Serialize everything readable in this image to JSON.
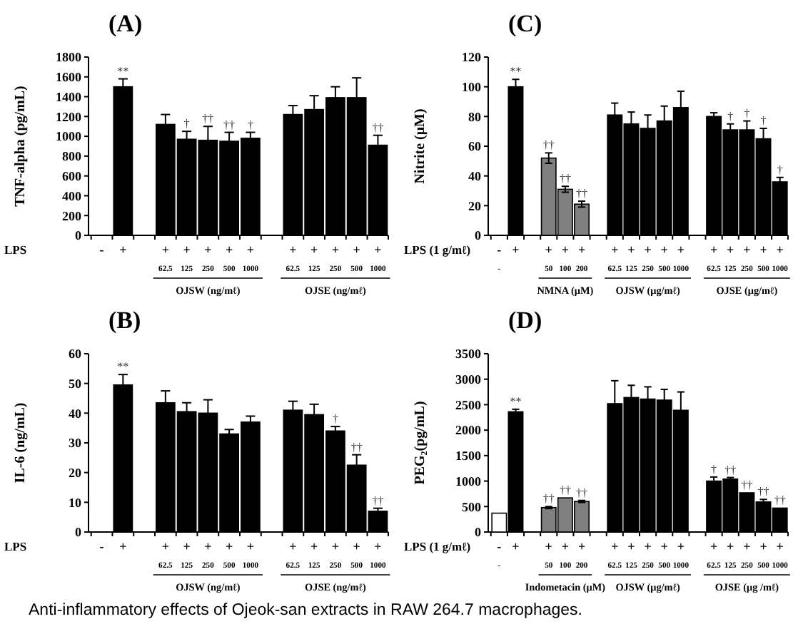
{
  "chart_data": [
    {
      "type": "bar",
      "title": "(A)",
      "ylabel": "TNF-alpha (pg/mL)",
      "xlabel": "LPS",
      "ylim": [
        0,
        1800
      ],
      "yticks": [
        0,
        200,
        400,
        600,
        800,
        1000,
        1200,
        1400,
        1600,
        1800
      ],
      "categories": [
        "-",
        "+",
        null,
        "+\n62.5",
        "+\n125",
        "+\n250",
        "+\n500",
        "+\n1000",
        null,
        "+\n62.5",
        "+\n125",
        "+\n250",
        "+\n500",
        "+\n1000"
      ],
      "values": [
        null,
        1500,
        null,
        1120,
        970,
        960,
        950,
        980,
        null,
        1220,
        1270,
        1390,
        1390,
        910
      ],
      "errors": [
        null,
        80,
        null,
        100,
        80,
        140,
        90,
        60,
        null,
        90,
        140,
        110,
        200,
        100
      ],
      "value_labels": [
        null,
        "**",
        null,
        null,
        "†",
        "††",
        "††",
        "†",
        null,
        null,
        null,
        null,
        null,
        "††"
      ],
      "color": "#000000",
      "annotations": [
        "OJSW (ng/mℓ)",
        "OJSE (ng/mℓ)"
      ]
    },
    {
      "type": "bar",
      "title": "(C)",
      "ylabel": "Nitrite (μM)",
      "xlabel": "LPS (1 g/mℓ)",
      "ylim": [
        0,
        120
      ],
      "yticks": [
        0,
        20,
        40,
        60,
        80,
        100,
        120
      ],
      "categories": [
        "-\n-",
        "+",
        null,
        "+\n50",
        "+\n100",
        "+\n200",
        null,
        "+\n62.5",
        "+\n125",
        "+\n250",
        "+\n500",
        "+\n1000",
        null,
        "+\n62.5",
        "+\n125",
        "+\n250",
        "+\n500",
        "+\n1000"
      ],
      "values": [
        null,
        100,
        null,
        52,
        31,
        21,
        null,
        81,
        75,
        72,
        77,
        86,
        null,
        80,
        71,
        71,
        65,
        36
      ],
      "errors": [
        null,
        5,
        null,
        3.5,
        2,
        2,
        null,
        8,
        8,
        9,
        10,
        11,
        null,
        2.5,
        4,
        6,
        7,
        3
      ],
      "value_labels": [
        null,
        "**",
        null,
        "††",
        "††",
        "††",
        null,
        null,
        null,
        null,
        null,
        null,
        null,
        null,
        "†",
        "†",
        "†",
        "†"
      ],
      "colors": [
        null,
        "#000000",
        null,
        "#808080",
        "#808080",
        "#808080",
        null,
        "#000000",
        "#000000",
        "#000000",
        "#000000",
        "#000000",
        null,
        "#000000",
        "#000000",
        "#000000",
        "#000000",
        "#000000"
      ],
      "annotations": [
        "NMNA  (μM)",
        "OJSW (μg/mℓ)",
        "OJSE (μg/mℓ)"
      ]
    },
    {
      "type": "bar",
      "title": "(B)",
      "ylabel": "IL-6 (ng/mL)",
      "xlabel": "LPS",
      "ylim": [
        0,
        60
      ],
      "yticks": [
        0,
        10,
        20,
        30,
        40,
        50,
        60
      ],
      "categories": [
        "-",
        "+",
        null,
        "+\n62.5",
        "+\n125",
        "+\n250",
        "+\n500",
        "+\n1000",
        null,
        "+\n62.5",
        "+\n125",
        "+\n250",
        "+\n500",
        "+\n1000"
      ],
      "values": [
        null,
        49.5,
        null,
        43.5,
        40.5,
        40,
        33,
        37,
        null,
        41,
        39.5,
        34,
        22.5,
        7
      ],
      "errors": [
        null,
        3.5,
        null,
        4,
        3,
        4.5,
        1.5,
        2,
        null,
        3,
        3.5,
        1.5,
        3.5,
        1
      ],
      "value_labels": [
        null,
        "**",
        null,
        null,
        null,
        null,
        null,
        null,
        null,
        null,
        null,
        "†",
        "††",
        "††"
      ],
      "color": "#000000",
      "annotations": [
        "OJSW (ng/mℓ)",
        "OJSE (ng/mℓ)"
      ]
    },
    {
      "type": "bar",
      "title": "(D)",
      "ylabel": "PEG₂(pg/mL)",
      "xlabel": "LPS (1 g/mℓ)",
      "ylim": [
        0,
        3500
      ],
      "yticks": [
        0,
        500,
        1000,
        1500,
        2000,
        2500,
        3000,
        3500
      ],
      "categories": [
        "-\n-",
        "+",
        null,
        "+\n50",
        "+\n100",
        "+\n200",
        null,
        "+\n62.5",
        "+\n125",
        "+\n250",
        "+\n500",
        "+\n1000",
        null,
        "+\n62.5",
        "+\n125",
        "+\n250",
        "+\n500",
        "+\n1000"
      ],
      "values": [
        370,
        2360,
        null,
        480,
        670,
        600,
        null,
        2520,
        2640,
        2610,
        2590,
        2390,
        null,
        1000,
        1040,
        770,
        590,
        470
      ],
      "errors": [
        null,
        50,
        null,
        20,
        null,
        20,
        null,
        450,
        240,
        240,
        210,
        360,
        null,
        80,
        30,
        null,
        50,
        null
      ],
      "value_labels": [
        null,
        "**",
        null,
        "††",
        "††",
        "††",
        null,
        null,
        null,
        null,
        null,
        null,
        null,
        "†",
        "††",
        "††",
        "††",
        "††"
      ],
      "colors": [
        "#ffffff",
        "#000000",
        null,
        "#808080",
        "#808080",
        "#808080",
        null,
        "#000000",
        "#000000",
        "#000000",
        "#000000",
        "#000000",
        null,
        "#000000",
        "#000000",
        "#000000",
        "#000000",
        "#000000"
      ],
      "annotations": [
        "Indometacin (μM)",
        "OJSW (μg/mℓ)",
        "OJSE (μg /mℓ)"
      ]
    },
    {
      "type": "other",
      "annotations": [
        "Anti-inflammatory effects of Ojeok-san extracts in RAW 264.7 macrophages."
      ]
    }
  ]
}
